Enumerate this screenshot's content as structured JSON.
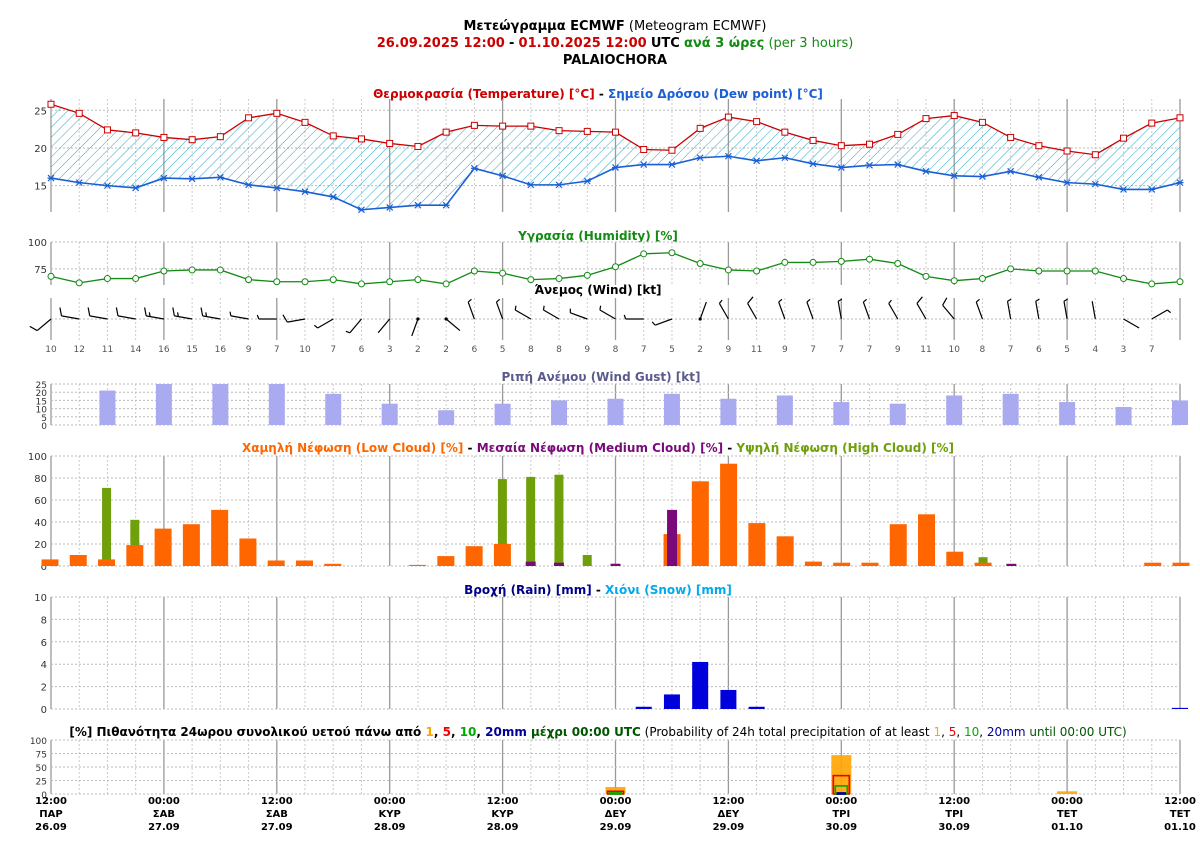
{
  "header": {
    "line1_bold": "Μετεώγραμμα ECMWF",
    "line1_normal": "(Meteogram ECMWF)",
    "range_start": "26.09.2025 12:00",
    "range_sep": "-",
    "range_end": "01.10.2025 12:00",
    "utc": "UTC",
    "every_bold": "ανά 3 ώρες",
    "every_normal": "(per 3 hours)",
    "location": "PALAIOCHORA"
  },
  "colors": {
    "temperature": "#cc0000",
    "dewpoint": "#1a5fd6",
    "humidity": "#138a13",
    "gust": "#aaaaf0",
    "low_cloud": "#ff6600",
    "medium_cloud": "#7a0a7a",
    "high_cloud": "#6fa00a",
    "rain": "#0000dd",
    "snow": "#00aaee",
    "p1": "#ffa500",
    "p5": "#ee0000",
    "p10": "#00aa00",
    "p20": "#000099"
  },
  "x_axis": {
    "ticks": [
      {
        "time": "12:00",
        "day": "ΠΑΡ",
        "date": "26.09"
      },
      {
        "time": "00:00",
        "day": "ΣΑΒ",
        "date": "27.09"
      },
      {
        "time": "12:00",
        "day": "ΣΑΒ",
        "date": "27.09"
      },
      {
        "time": "00:00",
        "day": "ΚΥΡ",
        "date": "28.09"
      },
      {
        "time": "12:00",
        "day": "ΚΥΡ",
        "date": "28.09"
      },
      {
        "time": "00:00",
        "day": "ΔΕΥ",
        "date": "29.09"
      },
      {
        "time": "12:00",
        "day": "ΔΕΥ",
        "date": "29.09"
      },
      {
        "time": "00:00",
        "day": "ΤΡΙ",
        "date": "30.09"
      },
      {
        "time": "12:00",
        "day": "ΤΡΙ",
        "date": "30.09"
      },
      {
        "time": "00:00",
        "day": "ΤΕΤ",
        "date": "01.10"
      },
      {
        "time": "12:00",
        "day": "ΤΕΤ",
        "date": "01.10"
      }
    ]
  },
  "chart_data": [
    {
      "type": "line",
      "title_parts": [
        "Θερμοκρασία (Temperature) [°C]",
        " - ",
        "Σημείο Δρόσου (Dew point) [°C]"
      ],
      "yticks": [
        15,
        20,
        25
      ],
      "ylim": [
        11.5,
        26.5
      ],
      "series": [
        {
          "name": "Θερμοκρασία (Temperature) [°C]",
          "values": [
            25.8,
            24.6,
            22.4,
            22.0,
            21.4,
            21.1,
            21.5,
            24.0,
            24.6,
            23.4,
            21.6,
            21.2,
            20.6,
            20.2,
            22.1,
            23.0,
            22.9,
            22.9,
            22.3,
            22.2,
            22.1,
            19.8,
            19.7,
            22.6,
            24.1,
            23.5,
            22.1,
            21.0,
            20.3,
            20.5,
            21.8,
            23.9,
            24.3,
            23.4,
            21.4,
            20.3,
            19.6,
            19.1,
            21.3,
            23.3,
            24.0
          ]
        },
        {
          "name": "Σημείο Δρόσου (Dew point) [°C]",
          "values": [
            16.0,
            15.4,
            15.0,
            14.7,
            16.0,
            15.9,
            16.1,
            15.1,
            14.7,
            14.2,
            13.5,
            11.8,
            12.1,
            12.4,
            12.4,
            17.3,
            16.3,
            15.1,
            15.1,
            15.6,
            17.4,
            17.8,
            17.8,
            18.7,
            18.9,
            18.3,
            18.7,
            17.9,
            17.4,
            17.7,
            17.8,
            16.9,
            16.3,
            16.2,
            16.9,
            16.1,
            15.4,
            15.2,
            14.5,
            14.5,
            15.4
          ]
        }
      ]
    },
    {
      "type": "line",
      "title": "Υγρασία (Humidity) [%]",
      "yticks": [
        75,
        100
      ],
      "ylim": [
        60,
        100
      ],
      "series": [
        {
          "name": "Υγρασία (Humidity) [%]",
          "values": [
            68,
            62,
            66,
            66,
            73,
            74,
            74,
            65,
            63,
            63,
            65,
            61,
            63,
            65,
            61,
            73,
            71,
            65,
            66,
            69,
            77,
            89,
            90,
            80,
            74,
            73,
            81,
            81,
            82,
            84,
            80,
            68,
            64,
            66,
            75,
            73,
            73,
            73,
            66,
            61,
            63
          ]
        }
      ]
    },
    {
      "type": "wind",
      "title": "Άνεμος (Wind) [kt]",
      "speeds": [
        10,
        12,
        11,
        14,
        16,
        15,
        16,
        9,
        7,
        10,
        7,
        6,
        3,
        2,
        2,
        6,
        5,
        8,
        8,
        9,
        8,
        7,
        5,
        2,
        9,
        11,
        9,
        7,
        7,
        7,
        9,
        11,
        10,
        8,
        7,
        6,
        5,
        4,
        3,
        7
      ],
      "directions_deg": [
        230,
        280,
        280,
        280,
        280,
        280,
        280,
        280,
        270,
        260,
        240,
        220,
        220,
        200,
        130,
        340,
        340,
        300,
        300,
        290,
        300,
        270,
        250,
        20,
        330,
        330,
        340,
        340,
        350,
        340,
        330,
        330,
        320,
        340,
        350,
        350,
        350,
        350,
        120,
        60
      ]
    },
    {
      "type": "bar",
      "title": "Ριπή Ανέμου (Wind Gust) [kt]",
      "yticks": [
        0,
        5,
        10,
        15,
        20,
        25
      ],
      "ylim": [
        0,
        25
      ],
      "series": [
        {
          "name": "Ριπή Ανέμου (Wind Gust) [kt]",
          "values": [
            null,
            21,
            25,
            25,
            25,
            19,
            13,
            9,
            13,
            15,
            16,
            19,
            16,
            18,
            14,
            13,
            18,
            19,
            14,
            11,
            15
          ]
        }
      ]
    },
    {
      "type": "bar",
      "title_parts": [
        "Χαμηλή Νέφωση (Low Cloud) [%]",
        " - ",
        "Μεσαία Νέφωση (Medium Cloud) [%]",
        " - ",
        "Υψηλή Νέφωση (High Cloud) [%]"
      ],
      "yticks": [
        0,
        20,
        40,
        60,
        80,
        100
      ],
      "ylim": [
        0,
        100
      ],
      "series": [
        {
          "name": "Χαμηλή Νέφωση (Low Cloud) [%]",
          "values": [
            6,
            10,
            6,
            19,
            34,
            38,
            51,
            25,
            5,
            5,
            2,
            0,
            0,
            1,
            9,
            18,
            20,
            0,
            0,
            0,
            0,
            0,
            29,
            77,
            93,
            39,
            27,
            4,
            3,
            3,
            38,
            47,
            13,
            3,
            0,
            0,
            0,
            0,
            0,
            3,
            3,
            2,
            0,
            5,
            9
          ]
        },
        {
          "name": "Μεσαία Νέφωση (Medium Cloud) [%]",
          "values": [
            0,
            0,
            0,
            0,
            0,
            0,
            0,
            0,
            0,
            0,
            0,
            0,
            0,
            0,
            0,
            0,
            0,
            4,
            3,
            0,
            2,
            0,
            51,
            0,
            0,
            0,
            0,
            0,
            0,
            0,
            0,
            0,
            0,
            0,
            2,
            0,
            0,
            0,
            0,
            0,
            0,
            0,
            0,
            0,
            0
          ]
        },
        {
          "name": "Υψηλή Νέφωση (High Cloud) [%]",
          "values": [
            0,
            0,
            71,
            42,
            0,
            0,
            0,
            0,
            0,
            0,
            0,
            0,
            0,
            0,
            0,
            0,
            79,
            81,
            83,
            10,
            2,
            0,
            0,
            0,
            0,
            0,
            0,
            0,
            0,
            0,
            0,
            0,
            0,
            8,
            0,
            0,
            0,
            0,
            0,
            0,
            0,
            0,
            0,
            0,
            0
          ]
        }
      ]
    },
    {
      "type": "bar",
      "title_parts": [
        "Βροχή (Rain) [mm]",
        " - ",
        "Χιόνι (Snow) [mm]"
      ],
      "yticks": [
        0,
        2,
        4,
        6,
        8,
        10
      ],
      "ylim": [
        0,
        10
      ],
      "series": [
        {
          "name": "Βροχή (Rain) [mm]",
          "values": [
            0,
            0,
            0,
            0,
            0,
            0,
            0,
            0,
            0,
            0,
            0,
            0,
            0,
            0,
            0,
            0,
            0,
            0,
            0,
            0,
            0,
            0.2,
            1.3,
            4.2,
            1.7,
            0.2,
            0,
            0,
            0,
            0,
            0,
            0,
            0,
            0,
            0,
            0,
            0,
            0,
            0,
            0,
            0.1
          ]
        },
        {
          "name": "Χιόνι (Snow) [mm]",
          "values": []
        }
      ]
    },
    {
      "type": "bar",
      "title_parts": [
        {
          "text": "[%] Πιθανότητα 24ωρου συνολικού υετού πάνω από ",
          "style": "bold",
          "color": "#000000"
        },
        {
          "text": "1",
          "style": "bold",
          "color": "#ffa500"
        },
        {
          "text": ", ",
          "style": "bold",
          "color": "#000000"
        },
        {
          "text": "5",
          "style": "bold",
          "color": "#ee0000"
        },
        {
          "text": ", ",
          "style": "bold",
          "color": "#000000"
        },
        {
          "text": "10",
          "style": "bold",
          "color": "#00aa00"
        },
        {
          "text": ", ",
          "style": "bold",
          "color": "#000000"
        },
        {
          "text": "20mm",
          "style": "bold",
          "color": "#000099"
        },
        {
          "text": " μέχρι 00:00 UTC",
          "style": "bold",
          "color": "#005500"
        },
        {
          "text": " (Probability of 24h total precipitation of at least ",
          "style": "normal",
          "color": "#000000"
        },
        {
          "text": "1",
          "style": "normal",
          "color": "#ffa500"
        },
        {
          "text": ", ",
          "style": "normal",
          "color": "#000000"
        },
        {
          "text": "5",
          "style": "normal",
          "color": "#ee0000"
        },
        {
          "text": ", ",
          "style": "normal",
          "color": "#000000"
        },
        {
          "text": "10",
          "style": "normal",
          "color": "#00aa00"
        },
        {
          "text": ", ",
          "style": "normal",
          "color": "#000000"
        },
        {
          "text": "20mm",
          "style": "normal",
          "color": "#000099"
        },
        {
          "text": " until 00:00 UTC)",
          "style": "normal",
          "color": "#005500"
        }
      ],
      "yticks": [
        0,
        25,
        50,
        75,
        100
      ],
      "ylim": [
        0,
        100
      ],
      "categories": [
        "27.09",
        "28.09",
        "29.09",
        "30.09",
        "01.10"
      ],
      "series": [
        {
          "name": "1",
          "values": [
            0,
            0,
            13,
            72,
            5
          ]
        },
        {
          "name": "5",
          "values": [
            0,
            0,
            5,
            34,
            0
          ]
        },
        {
          "name": "10",
          "values": [
            0,
            0,
            2,
            15,
            0
          ]
        },
        {
          "name": "20mm",
          "values": [
            0,
            0,
            0,
            2,
            0
          ]
        }
      ]
    }
  ]
}
